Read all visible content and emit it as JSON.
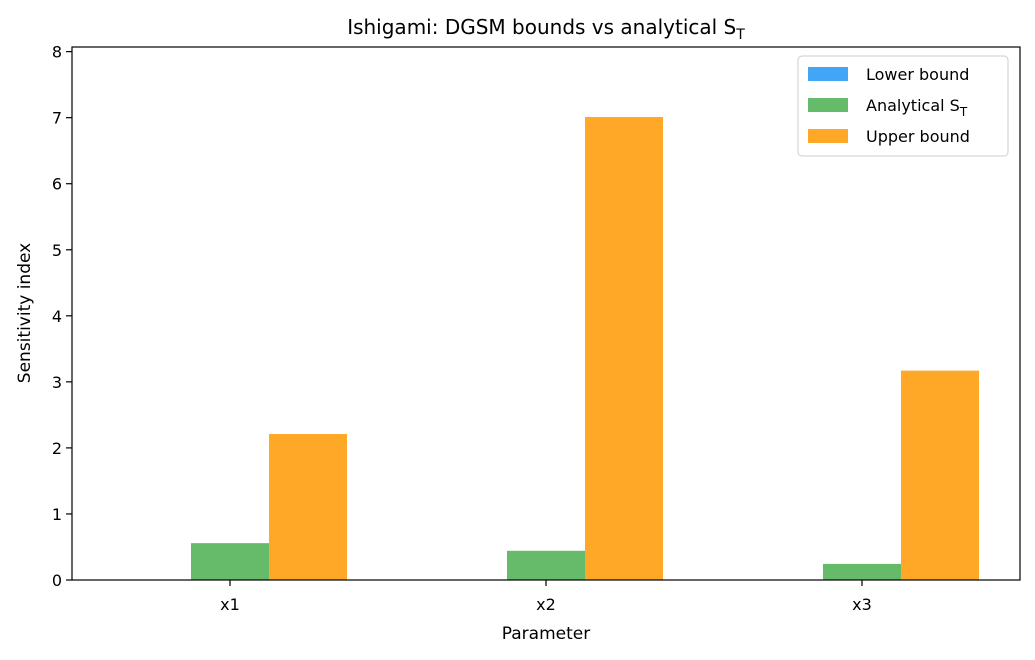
{
  "chart_data": {
    "type": "bar",
    "title": "Ishigami: DGSM bounds vs analytical S",
    "title_sub": "T",
    "xlabel": "Parameter",
    "ylabel": "Sensitivity index",
    "categories": [
      "x1",
      "x2",
      "x3"
    ],
    "ylim": [
      0,
      8.07
    ],
    "yticks": [
      0,
      1,
      2,
      3,
      4,
      5,
      6,
      7,
      8
    ],
    "grid": false,
    "legend_position": "top-right",
    "series": [
      {
        "name": "Lower bound",
        "color": "#42a5f5",
        "values": [
          0.0,
          0.0,
          0.0
        ]
      },
      {
        "name": "Analytical S",
        "name_sub": "T",
        "color": "#66bb6a",
        "values": [
          0.558,
          0.442,
          0.244
        ]
      },
      {
        "name": "Upper bound",
        "color": "#ffa726",
        "values": [
          2.21,
          7.01,
          3.17
        ]
      }
    ]
  }
}
